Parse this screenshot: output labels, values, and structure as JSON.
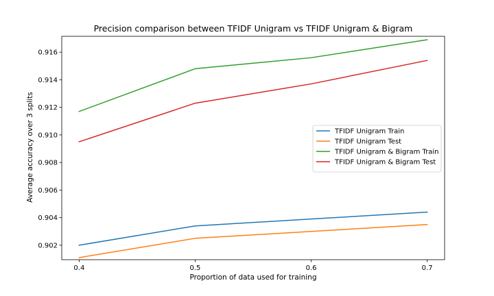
{
  "chart_data": {
    "type": "line",
    "title": "Precision comparison between TFIDF Unigram vs TFIDF Unigram & Bigram",
    "xlabel": "Proportion of data used for training",
    "ylabel": "Average accuracy over 3 splits",
    "x": [
      0.4,
      0.5,
      0.6,
      0.7
    ],
    "x_ticks": [
      "0.4",
      "0.5",
      "0.6",
      "0.7"
    ],
    "y_ticks": [
      "0.902",
      "0.904",
      "0.906",
      "0.908",
      "0.910",
      "0.912",
      "0.914",
      "0.916"
    ],
    "xlim": [
      0.385,
      0.715
    ],
    "ylim": [
      0.90095,
      0.91715
    ],
    "grid": false,
    "legend_position": "center-right",
    "series": [
      {
        "name": "TFIDF Unigram Train",
        "color": "#1f77b4",
        "values": [
          0.902,
          0.9034,
          0.9039,
          0.9044
        ]
      },
      {
        "name": "TFIDF Unigram Test",
        "color": "#ff7f0e",
        "values": [
          0.9011,
          0.9025,
          0.903,
          0.9035
        ]
      },
      {
        "name": "TFIDF Unigram & Bigram Train",
        "color": "#2ca02c",
        "values": [
          0.9117,
          0.9148,
          0.9156,
          0.9169
        ]
      },
      {
        "name": "TFIDF Unigram & Bigram Test",
        "color": "#d62728",
        "values": [
          0.9095,
          0.9123,
          0.9137,
          0.9154
        ]
      }
    ]
  }
}
